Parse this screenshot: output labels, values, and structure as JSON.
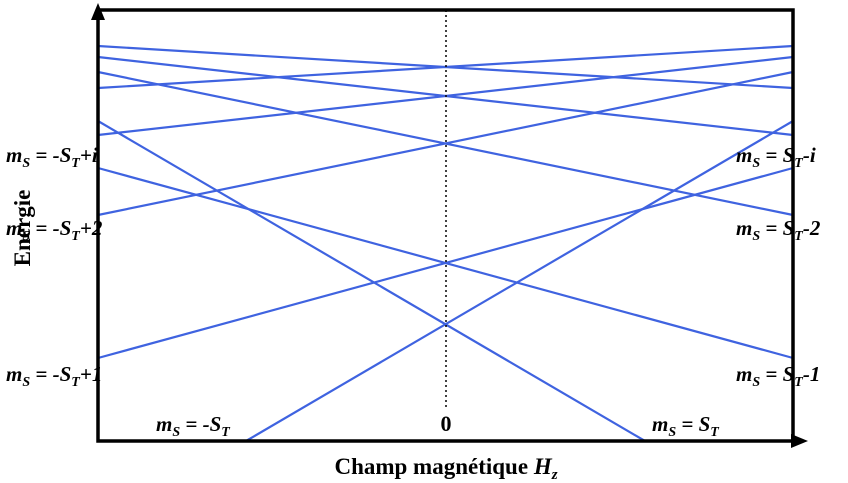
{
  "x_axis_label": {
    "text": "Champ magnétique ",
    "variable": "H",
    "subscript": "z"
  },
  "y_axis_label": "Energie",
  "center_tick": "0",
  "level_color": "#3f63e0",
  "left_labels": [
    {
      "m": "m",
      "sub": "S",
      "eq": " = ",
      "pre": "-S",
      "tsub": "T",
      "post": "+i"
    },
    {
      "m": "m",
      "sub": "S",
      "eq": " = ",
      "pre": "-S",
      "tsub": "T",
      "post": "+2"
    },
    {
      "m": "m",
      "sub": "S",
      "eq": " = ",
      "pre": "-S",
      "tsub": "T",
      "post": "+1"
    }
  ],
  "right_labels": [
    {
      "m": "m",
      "sub": "S",
      "eq": " = ",
      "pre": "S",
      "tsub": "T",
      "post": "-i"
    },
    {
      "m": "m",
      "sub": "S",
      "eq": " = ",
      "pre": "S",
      "tsub": "T",
      "post": "-2"
    },
    {
      "m": "m",
      "sub": "S",
      "eq": " = ",
      "pre": "S",
      "tsub": "T",
      "post": "-1"
    }
  ],
  "bottom_labels": [
    {
      "m": "m",
      "sub": "S",
      "eq": " = ",
      "pre": "-S",
      "tsub": "T"
    },
    {
      "m": "m",
      "sub": "S",
      "eq": " = ",
      "pre": "S",
      "tsub": "T"
    }
  ]
}
